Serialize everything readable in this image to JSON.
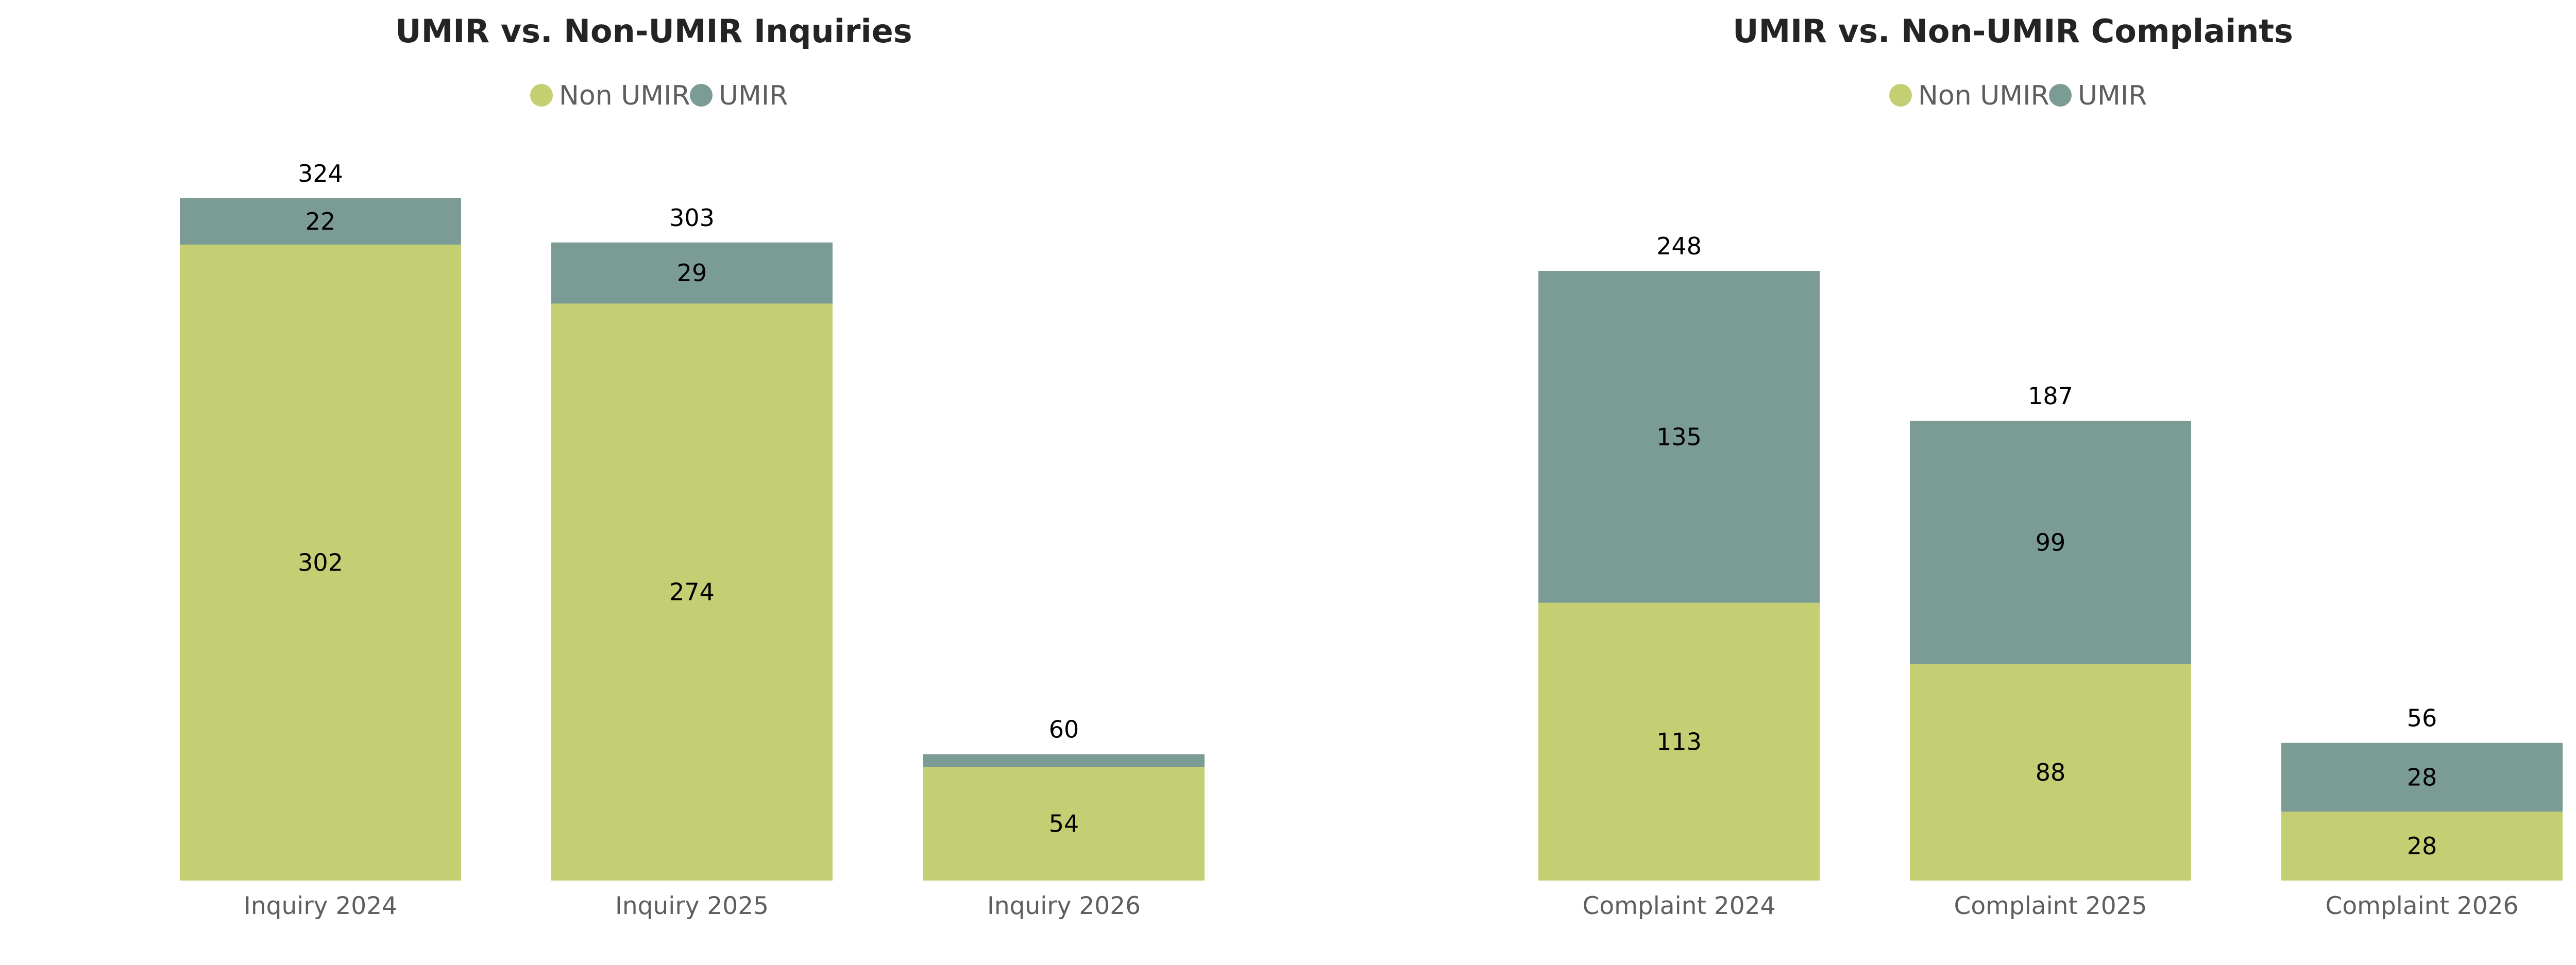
{
  "colors": {
    "non_umir": "#c4cf74",
    "umir": "#7b9c95"
  },
  "chart_data": [
    {
      "type": "bar",
      "stacked": true,
      "title": "UMIR vs. Non-UMIR Inquiries",
      "categories": [
        "Inquiry 2024",
        "Inquiry 2025",
        "Inquiry 2026"
      ],
      "series": [
        {
          "name": "Non UMIR",
          "values": [
            302,
            274,
            54
          ]
        },
        {
          "name": "UMIR",
          "values": [
            22,
            29,
            6
          ]
        }
      ],
      "series_labels": [
        [
          "302",
          "274",
          "54"
        ],
        [
          "22",
          "29",
          ""
        ]
      ],
      "totals": [
        "324",
        "303",
        "60"
      ],
      "legend": [
        "Non UMIR",
        "UMIR"
      ],
      "legend_position": "top-center",
      "ylim": [
        0,
        324
      ],
      "grid": false,
      "xlabel": "",
      "ylabel": ""
    },
    {
      "type": "bar",
      "stacked": true,
      "title": "UMIR vs. Non-UMIR Complaints",
      "categories": [
        "Complaint 2024",
        "Complaint 2025",
        "Complaint 2026"
      ],
      "series": [
        {
          "name": "Non UMIR",
          "values": [
            113,
            88,
            28
          ]
        },
        {
          "name": "UMIR",
          "values": [
            135,
            99,
            28
          ]
        }
      ],
      "series_labels": [
        [
          "113",
          "88",
          "28"
        ],
        [
          "135",
          "99",
          "28"
        ]
      ],
      "totals": [
        "248",
        "187",
        "56"
      ],
      "legend": [
        "Non UMIR",
        "UMIR"
      ],
      "legend_position": "top-center",
      "ylim": [
        0,
        248
      ],
      "grid": false,
      "xlabel": "",
      "ylabel": ""
    }
  ]
}
